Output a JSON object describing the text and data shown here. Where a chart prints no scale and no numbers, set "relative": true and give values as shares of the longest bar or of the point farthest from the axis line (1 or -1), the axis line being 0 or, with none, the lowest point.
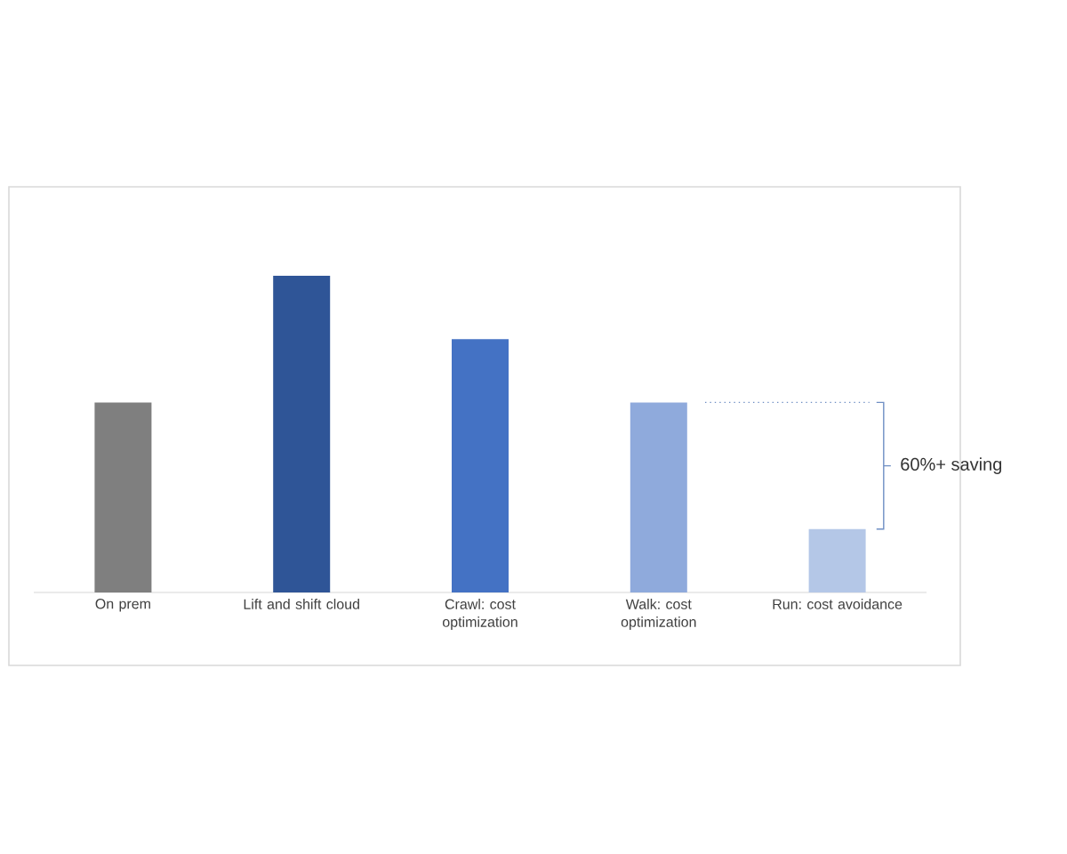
{
  "chart_data": {
    "type": "bar",
    "relative": true,
    "categories": [
      "On prem",
      "Lift and shift cloud",
      "Crawl: cost optimization",
      "Walk: cost optimization",
      "Run: cost avoidance"
    ],
    "values": [
      0.6,
      1,
      0.8,
      0.6,
      0.2
    ],
    "colors": [
      "#7f7f7f",
      "#2f5597",
      "#4472c4",
      "#8faadc",
      "#b4c7e7"
    ],
    "ref_lines": [
      {
        "axis": "y",
        "value": 0.6,
        "line_style": "dotted",
        "color": "#6f8fc4"
      }
    ],
    "annotations": [
      "60%+ saving"
    ]
  }
}
